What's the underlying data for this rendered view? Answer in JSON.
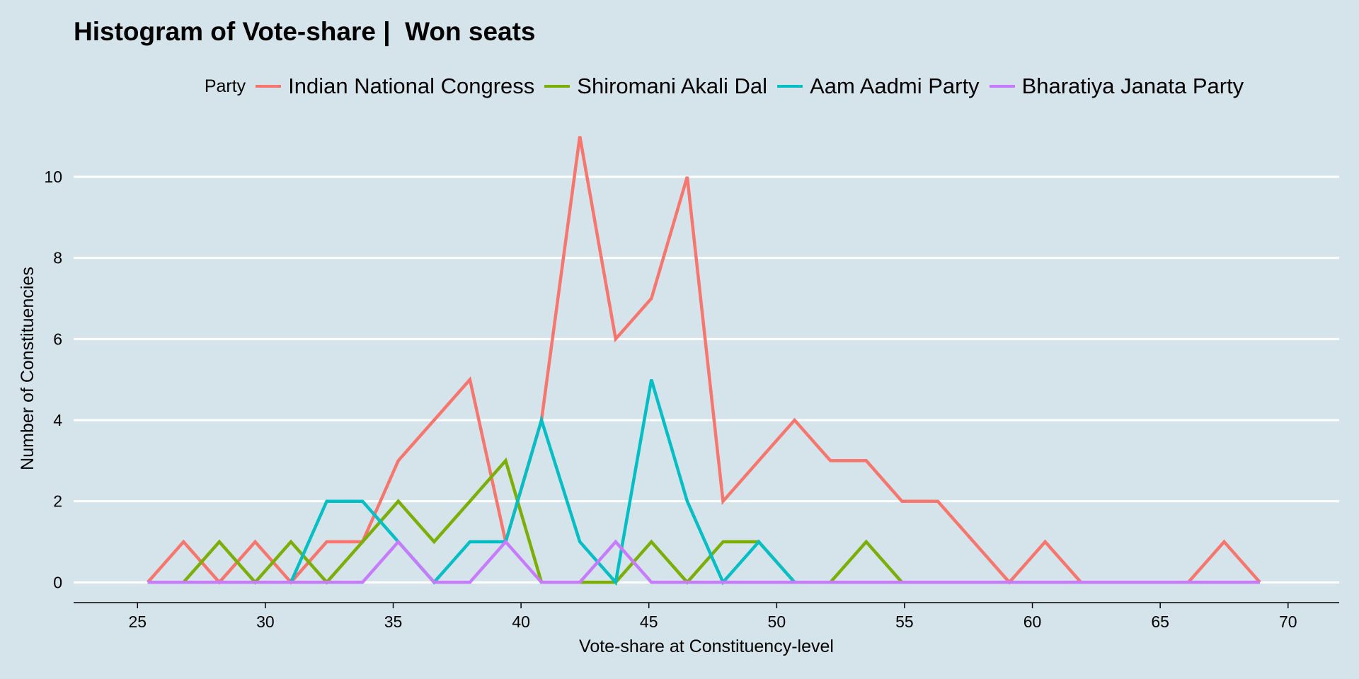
{
  "chart_data": {
    "type": "line",
    "title": "Histogram of Vote-share |  Won seats",
    "xlabel": "Vote-share at Constituency-level",
    "ylabel": "Number of Constituencies",
    "legend_title": "Party",
    "legend_position": "top",
    "grid": "horizontal major",
    "xlim": [
      22.5,
      72
    ],
    "ylim": [
      -0.5,
      11.5
    ],
    "x_ticks": [
      25,
      30,
      35,
      40,
      45,
      50,
      55,
      60,
      65,
      70
    ],
    "y_ticks": [
      0,
      2,
      4,
      6,
      8,
      10
    ],
    "x": [
      25.4,
      26.8,
      28.2,
      29.6,
      31.0,
      32.4,
      33.8,
      35.2,
      36.6,
      38.0,
      39.4,
      40.8,
      42.3,
      43.7,
      45.1,
      46.5,
      47.9,
      49.3,
      50.7,
      52.1,
      53.5,
      54.9,
      56.3,
      57.7,
      59.1,
      60.5,
      61.9,
      63.3,
      64.7,
      66.1,
      67.5,
      68.9
    ],
    "series": [
      {
        "name": "Indian National Congress",
        "color": "#f8766d",
        "values": [
          0,
          1,
          0,
          1,
          0,
          1,
          1,
          3,
          4,
          5,
          1,
          4,
          11,
          6,
          7,
          10,
          2,
          3,
          4,
          3,
          3,
          2,
          2,
          1,
          0,
          1,
          0,
          0,
          0,
          0,
          1,
          0
        ]
      },
      {
        "name": "Shiromani Akali Dal",
        "color": "#7cae00",
        "values": [
          0,
          0,
          1,
          0,
          1,
          0,
          1,
          2,
          1,
          2,
          3,
          0,
          0,
          0,
          1,
          0,
          1,
          1,
          0,
          0,
          1,
          0,
          0,
          0,
          0,
          0,
          0,
          0,
          0,
          0,
          0,
          0
        ]
      },
      {
        "name": "Aam Aadmi Party",
        "color": "#00bfc4",
        "values": [
          0,
          0,
          0,
          0,
          0,
          2,
          2,
          1,
          0,
          1,
          1,
          4,
          1,
          0,
          5,
          2,
          0,
          1,
          0,
          0,
          0,
          0,
          0,
          0,
          0,
          0,
          0,
          0,
          0,
          0,
          0,
          0
        ]
      },
      {
        "name": "Bharatiya Janata Party",
        "color": "#c77cff",
        "values": [
          0,
          0,
          0,
          0,
          0,
          0,
          0,
          1,
          0,
          0,
          1,
          0,
          0,
          1,
          0,
          0,
          0,
          0,
          0,
          0,
          0,
          0,
          0,
          0,
          0,
          0,
          0,
          0,
          0,
          0,
          0,
          0
        ]
      }
    ]
  }
}
